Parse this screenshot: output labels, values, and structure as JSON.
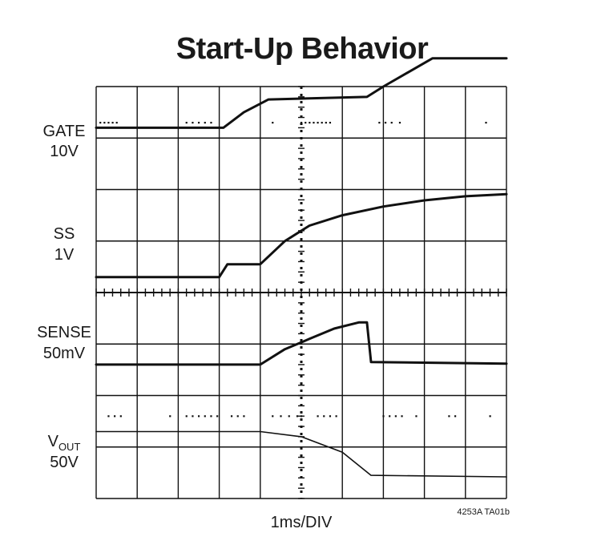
{
  "chart_data": {
    "type": "line",
    "title": "Start-Up Behavior",
    "xlabel": "1ms/DIV",
    "figure_ref": "4253A TA01b",
    "x_unit": "ms",
    "xlim": [
      0,
      10
    ],
    "divisions": {
      "x": 10,
      "y": 8
    },
    "grid": true,
    "channels": [
      {
        "label": "GATE",
        "label_sub": "",
        "scale": "10V"
      },
      {
        "label": "SS",
        "label_sub": "",
        "scale": "1V"
      },
      {
        "label": "SENSE",
        "label_sub": "",
        "scale": "50mV"
      },
      {
        "label": "V",
        "label_sub": "OUT",
        "scale": "50V"
      }
    ],
    "series": [
      {
        "x": [
          0,
          3.1,
          3.6,
          4.2,
          6.6,
          7.0,
          8.2,
          10
        ],
        "y": [
          7.2,
          7.2,
          7.5,
          7.75,
          7.8,
          8.0,
          8.55,
          8.55
        ]
      },
      {
        "x": [
          0,
          3.0,
          3.2,
          4.0,
          4.6,
          5.2,
          6.0,
          7.0,
          8.0,
          9.0,
          10
        ],
        "y": [
          4.3,
          4.3,
          4.55,
          4.55,
          5.0,
          5.3,
          5.5,
          5.67,
          5.79,
          5.87,
          5.91
        ]
      },
      {
        "x": [
          0,
          4.0,
          4.6,
          5.2,
          5.8,
          6.4,
          6.6,
          6.7,
          10
        ],
        "y": [
          2.6,
          2.6,
          2.9,
          3.1,
          3.3,
          3.42,
          3.42,
          2.65,
          2.62
        ]
      },
      {
        "x": [
          0,
          4.0,
          5.0,
          6.0,
          6.7,
          10
        ],
        "y": [
          1.3,
          1.3,
          1.2,
          0.9,
          0.45,
          0.42
        ]
      }
    ],
    "dotted_levels": [
      {
        "y": 7.3,
        "x": [
          0.1,
          0.2,
          0.3,
          0.4,
          0.5,
          2.2,
          2.35,
          2.5,
          2.65,
          2.8,
          4.3,
          5.0,
          5.1,
          5.2,
          5.3,
          5.4,
          5.5,
          5.6,
          5.7,
          6.9,
          7.05,
          7.2,
          7.4,
          9.5
        ]
      },
      {
        "y": 1.6,
        "x": [
          0.3,
          0.45,
          0.6,
          1.8,
          2.2,
          2.35,
          2.5,
          2.65,
          2.8,
          2.95,
          3.3,
          3.45,
          3.6,
          4.3,
          4.5,
          4.7,
          4.9,
          5.0,
          5.4,
          5.55,
          5.7,
          5.85,
          7.0,
          7.15,
          7.3,
          7.45,
          7.8,
          8.6,
          8.75,
          9.6
        ]
      }
    ]
  }
}
